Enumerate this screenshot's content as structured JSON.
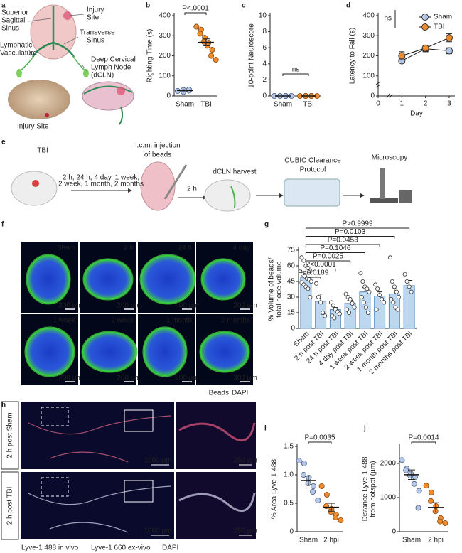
{
  "panel_a": {
    "letter": "a",
    "labels": [
      [
        "Superior",
        "Sagittal",
        "Sinus"
      ],
      [
        "Injury",
        "Site"
      ],
      [
        "Transverse",
        "Sinus"
      ],
      [
        "Lymphatic",
        "Vasculature"
      ],
      [
        "Deep Cervical",
        "Lymph Node",
        "(dCLN)"
      ],
      [
        "Injury Site"
      ]
    ]
  },
  "panel_e": {
    "letter": "e",
    "steps": [
      [
        "TBI"
      ],
      [
        "2 h, 24 h, 4 day, 1 week,",
        "2 week, 1 month, 2 months"
      ],
      [
        "i.c.m. injection",
        "of beads"
      ],
      [
        "2 h"
      ],
      [
        "dCLN harvest"
      ],
      [
        "CUBIC Clearance",
        "Protocol"
      ],
      [
        "Microscopy"
      ]
    ]
  },
  "panel_f": {
    "letter": "f",
    "images": [
      {
        "label": "Sham",
        "scale_bar": "200 µm"
      },
      {
        "label": "2 h",
        "scale_bar": "200 µm"
      },
      {
        "label": "24 h",
        "scale_bar": "400 µm"
      },
      {
        "label": "4 day",
        "scale_bar": "200 µm"
      },
      {
        "label": "1 week",
        "scale_bar": "200 µm"
      },
      {
        "label": "2 week",
        "scale_bar": "200 µm"
      },
      {
        "label": "1 month",
        "scale_bar": "200 µm"
      },
      {
        "label": "2 months",
        "scale_bar": "300 µm"
      }
    ],
    "legend": [
      "Beads",
      "DAPI"
    ]
  },
  "panel_h": {
    "letter": "h",
    "rows": [
      "2 h post Sham",
      "2 h post TBI"
    ],
    "scale_bars": [
      "1000 µm",
      "250 µm"
    ],
    "legend": [
      "Lyve-1 488 in vivo",
      "Lyve-1 660 ex-vivo",
      "DAPI"
    ]
  },
  "chart_data": [
    {
      "type": "strip",
      "panel_label": "b",
      "y_label": "Righting Time (s)",
      "categories": [
        "Sham",
        "TBI"
      ],
      "colors": [
        "#b4c7e7",
        "#ed8b2f"
      ],
      "values": [
        [
          25,
          30,
          20,
          27,
          32
        ],
        [
          345,
          330,
          310,
          290,
          270,
          265,
          250,
          230,
          200,
          180
        ]
      ],
      "means": [
        27,
        267
      ],
      "sems": [
        2,
        17
      ],
      "ylim": [
        0,
        400
      ],
      "yticks": [
        0,
        100,
        200,
        300,
        400
      ],
      "annotation": "P<.0001"
    },
    {
      "type": "strip",
      "panel_label": "c",
      "y_label": "10-point Neuroscore",
      "categories": [
        "Sham",
        "TBI"
      ],
      "colors": [
        "#b4c7e7",
        "#ed8b2f"
      ],
      "values": [
        [
          0,
          0,
          0,
          0,
          0,
          0
        ],
        [
          0,
          0,
          0,
          0,
          0,
          0
        ]
      ],
      "means": [
        0,
        0
      ],
      "sems": [
        0,
        0
      ],
      "ylim": [
        0,
        10
      ],
      "yticks": [
        0,
        2,
        4,
        6,
        8,
        10
      ],
      "annotation": "ns"
    },
    {
      "type": "line",
      "panel_label": "d",
      "y_label": "Latency to Fall (s)",
      "x_label": "Day",
      "x": [
        1,
        2,
        3
      ],
      "xlim": [
        0,
        3
      ],
      "xticks": [
        0,
        1,
        2,
        3
      ],
      "ylim": [
        0,
        400
      ],
      "yticks": [
        0,
        100,
        200,
        300,
        400
      ],
      "annotation": "ns",
      "legend": "upper right",
      "series": [
        {
          "name": "Sham",
          "color": "#b4c7e7",
          "values": [
            175,
            235,
            225
          ],
          "errors": [
            10,
            15,
            15
          ]
        },
        {
          "name": "TBI",
          "color": "#ed8b2f",
          "values": [
            200,
            238,
            290
          ],
          "errors": [
            20,
            15,
            20
          ]
        }
      ]
    },
    {
      "type": "bar",
      "panel_label": "g",
      "y_label": [
        "% Volume of beads/",
        "total node volume"
      ],
      "color": "#bdd7ee",
      "categories": [
        "Sham",
        "2 h post TBI",
        "24 h post TBI",
        "4 day post TBI",
        "1 week post TBI",
        "2 week post TBI",
        "1 month post TBI",
        "2 months post TBI"
      ],
      "values": [
        49,
        26,
        18,
        24,
        35,
        31,
        33,
        41
      ],
      "errors": [
        3,
        7,
        2,
        3,
        4,
        4,
        5,
        5
      ],
      "points": [
        [
          68,
          65,
          60,
          58,
          55,
          52,
          50,
          48,
          47,
          45,
          44,
          42,
          40,
          38,
          30
        ],
        [
          43,
          30,
          25,
          15,
          12
        ],
        [
          25,
          22,
          18,
          16,
          14,
          12,
          10
        ],
        [
          33,
          30,
          28,
          24,
          20,
          18,
          15
        ],
        [
          53,
          45,
          40,
          38,
          35,
          30,
          25,
          20,
          15
        ],
        [
          42,
          38,
          32,
          28,
          25,
          18
        ],
        [
          68,
          45,
          40,
          35,
          30,
          28,
          25,
          20,
          18
        ],
        [
          52,
          45,
          40,
          35
        ]
      ],
      "ylim": [
        0,
        75
      ],
      "yticks": [
        0,
        15,
        30,
        45,
        60,
        75
      ],
      "p_values": [
        "P=0.0189",
        "P<0.0001",
        "P=0.0025",
        "P=0.1046",
        "P=0.0453",
        "P=0.0103",
        "P>0.9999"
      ]
    },
    {
      "type": "strip",
      "panel_label": "i",
      "y_label": "% Area Lyve-1 488",
      "categories": [
        "Sham",
        "2 hpi"
      ],
      "colors": [
        "#b4c7e7",
        "#ed8b2f"
      ],
      "values": [
        [
          1.25,
          1.2,
          1.0,
          0.95,
          0.85,
          0.8,
          0.7,
          0.55
        ],
        [
          0.8,
          0.65,
          0.45,
          0.4,
          0.35,
          0.3,
          0.25,
          0.2
        ]
      ],
      "means": [
        0.9,
        0.43
      ],
      "sems": [
        0.08,
        0.07
      ],
      "ylim": [
        0,
        1.5
      ],
      "yticks": [
        0,
        0.5,
        {
          "value": 1,
          "label": "1.0"
        },
        1.5
      ],
      "annotation": "P=0.0035"
    },
    {
      "type": "strip",
      "panel_label": "j",
      "y_label": [
        "Distance Lyve-1 488",
        "from hotspot (µm)"
      ],
      "categories": [
        "Sham",
        "2 hpi"
      ],
      "colors": [
        "#b4c7e7",
        "#ed8b2f"
      ],
      "values": [
        [
          2100,
          1850,
          1800,
          1700,
          1650,
          1600,
          1400,
          1200,
          700
        ],
        [
          1350,
          1150,
          900,
          750,
          600,
          400,
          300,
          250
        ]
      ],
      "means": [
        1670,
        710
      ],
      "sems": [
        140,
        140
      ],
      "ylim": [
        0,
        2500
      ],
      "yticks": [
        0,
        1000,
        2000
      ],
      "annotation": "P=0.0014"
    }
  ]
}
